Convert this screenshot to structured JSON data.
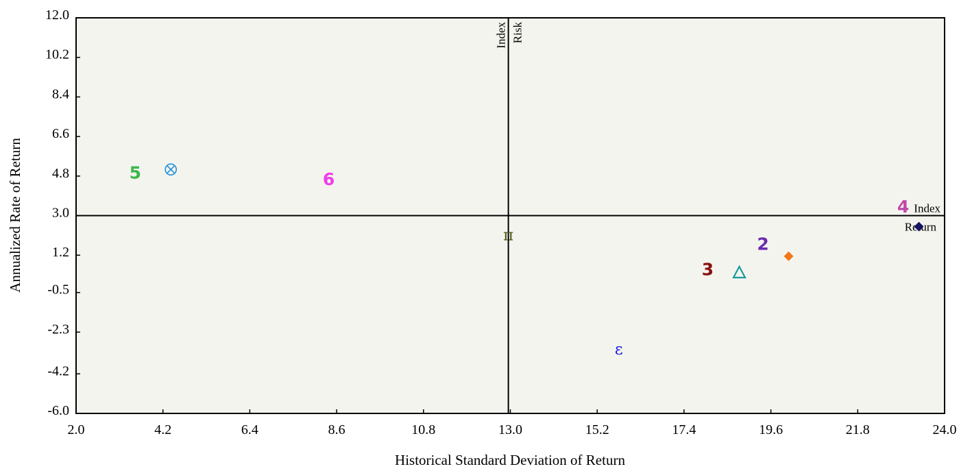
{
  "chart_data": {
    "type": "scatter",
    "title": "",
    "xlabel": "Historical Standard Deviation of Return",
    "ylabel": "Annualized Rate of Return",
    "xlim": [
      2.0,
      24.0
    ],
    "ylim": [
      -6.0,
      12.0
    ],
    "x_ticks": [
      "2.0",
      "4.2",
      "6.4",
      "8.6",
      "10.8",
      "13.0",
      "15.2",
      "17.4",
      "19.6",
      "21.8",
      "24.0"
    ],
    "y_ticks": [
      "-6.0",
      "-4.2",
      "-2.3",
      "-0.5",
      "1.2",
      "3.0",
      "4.8",
      "6.6",
      "8.4",
      "10.2",
      "12.0"
    ],
    "grid": false,
    "background": "#f4f4ef",
    "reference_lines": {
      "index_risk": {
        "x": 12.95,
        "label_line1": "Index",
        "label_line2": "Risk"
      },
      "index_return": {
        "y": 3.0,
        "label_line1": "Index",
        "label_line2": "Return"
      }
    },
    "points": [
      {
        "marker": "5",
        "x": 3.5,
        "y": 4.95,
        "color": "#3cb84a"
      },
      {
        "marker": "⊗",
        "x": 4.4,
        "y": 5.1,
        "color": "#1e90d8"
      },
      {
        "marker": "6",
        "x": 8.4,
        "y": 4.65,
        "color": "#ee3ee6"
      },
      {
        "marker": "π",
        "x": 12.95,
        "y": 2.1,
        "color": "#4a5a16"
      },
      {
        "marker": "3",
        "x": 18.0,
        "y": 0.55,
        "color": "#8b1010"
      },
      {
        "marker": "△",
        "x": 18.8,
        "y": 0.4,
        "color": "#1a9a9a"
      },
      {
        "marker": "2",
        "x": 19.4,
        "y": 1.7,
        "color": "#6a2bb0"
      },
      {
        "marker": "◆",
        "x": 20.05,
        "y": 1.15,
        "color": "#f07818"
      },
      {
        "marker": "ε",
        "x": 15.75,
        "y": -3.1,
        "color": "#1a1adc"
      },
      {
        "marker": "4",
        "x": 22.95,
        "y": 3.4,
        "color": "#c04aa8"
      },
      {
        "marker": "◆",
        "x": 23.35,
        "y": 2.5,
        "color": "#141464"
      }
    ]
  }
}
